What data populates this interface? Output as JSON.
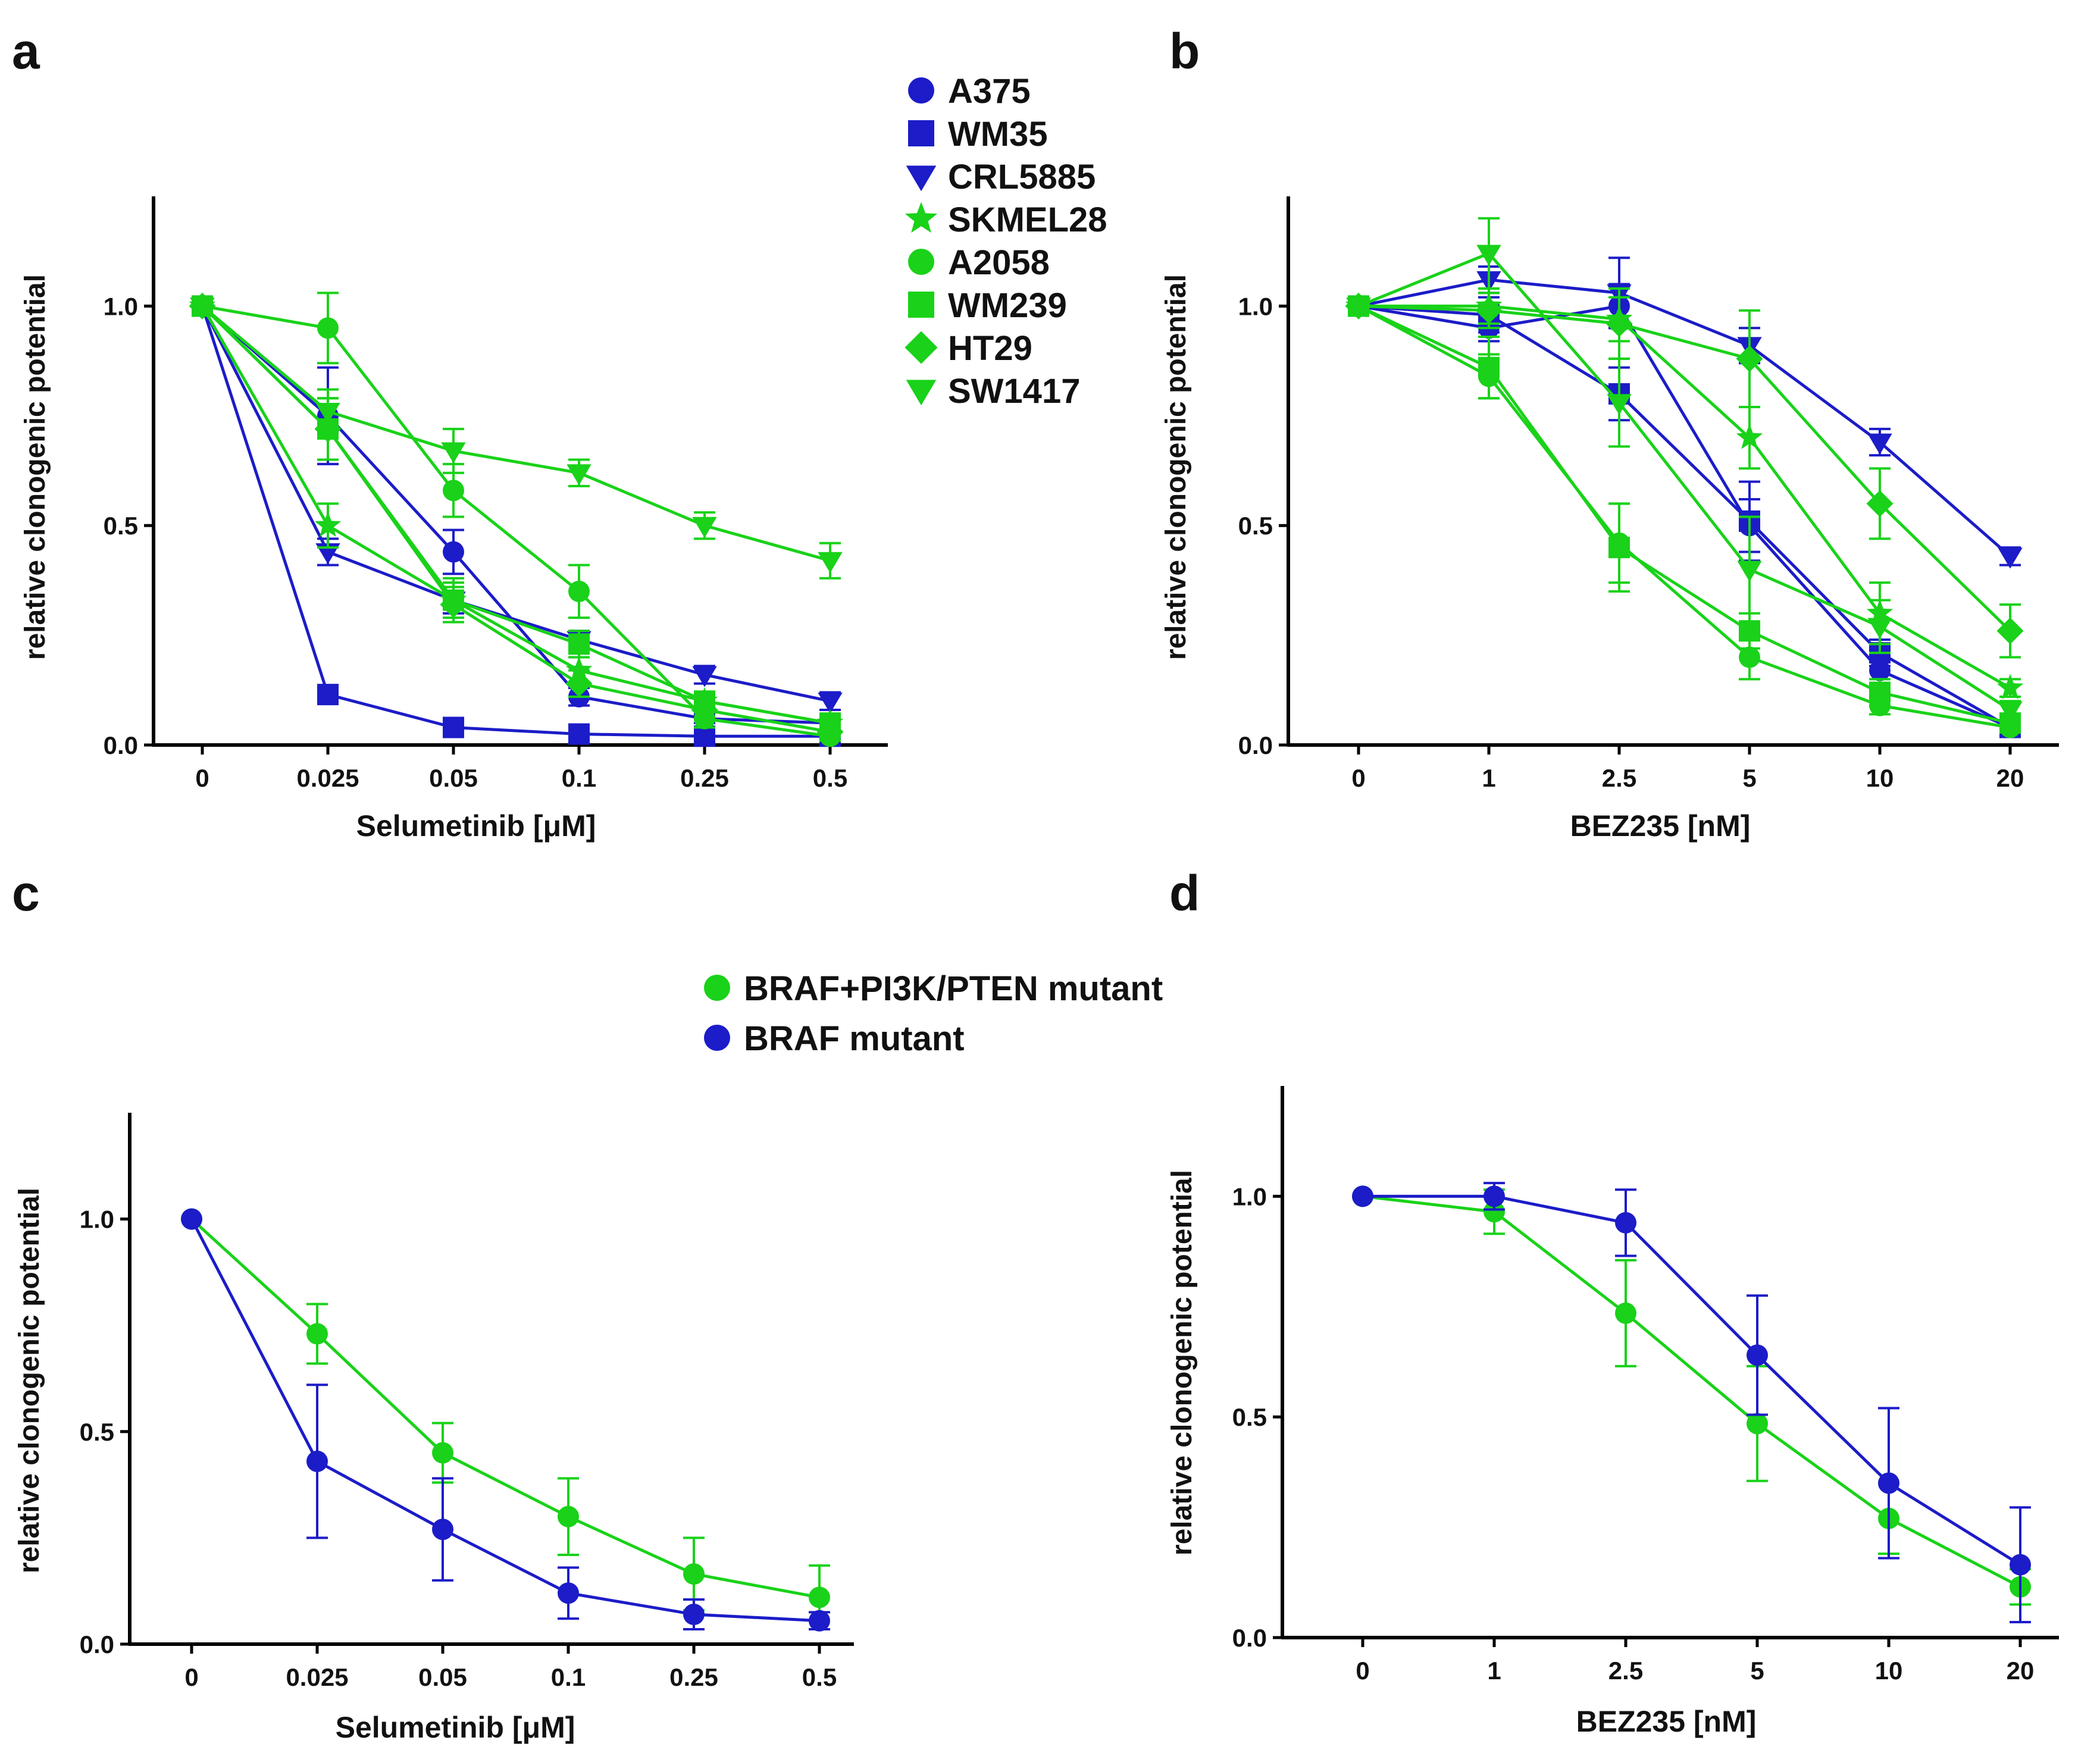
{
  "colors": {
    "blue": "#1c1cc8",
    "green": "#19d219",
    "axis": "#000000"
  },
  "legend_top": [
    {
      "label": "A375",
      "marker": "circle",
      "color": "blue"
    },
    {
      "label": "WM35",
      "marker": "square",
      "color": "blue"
    },
    {
      "label": "CRL5885",
      "marker": "triangle",
      "color": "blue"
    },
    {
      "label": "SKMEL28",
      "marker": "star",
      "color": "green"
    },
    {
      "label": "A2058",
      "marker": "circle",
      "color": "green"
    },
    {
      "label": "WM239",
      "marker": "square",
      "color": "green"
    },
    {
      "label": "HT29",
      "marker": "diamond",
      "color": "green"
    },
    {
      "label": "SW1417",
      "marker": "triangle",
      "color": "green"
    }
  ],
  "legend_bottom": [
    {
      "label": "BRAF+PI3K/PTEN mutant",
      "marker": "circle",
      "color": "green"
    },
    {
      "label": "BRAF mutant",
      "marker": "circle",
      "color": "blue"
    }
  ],
  "chart_data": [
    {
      "panel": "a",
      "type": "line",
      "xlabel": "Selumetinib [μM]",
      "ylabel": "relative clonogenic potential",
      "categories": [
        "0",
        "0.025",
        "0.05",
        "0.1",
        "0.25",
        "0.5"
      ],
      "ylim": [
        0,
        1.25
      ],
      "yticks": [
        "0.0",
        "0.5",
        "1.0"
      ],
      "series": [
        {
          "name": "A375",
          "marker": "circle",
          "color": "blue",
          "values": [
            1.0,
            0.75,
            0.44,
            0.11,
            0.06,
            0.05
          ],
          "err": [
            0,
            0.11,
            0.05,
            0.02,
            0.01,
            0.01
          ]
        },
        {
          "name": "WM35",
          "marker": "square",
          "color": "blue",
          "values": [
            1.0,
            0.115,
            0.04,
            0.025,
            0.02,
            0.02
          ],
          "err": [
            0,
            0.02,
            0.01,
            0.01,
            0.005,
            0.005
          ]
        },
        {
          "name": "CRL5885",
          "marker": "triangle",
          "color": "blue",
          "values": [
            1.0,
            0.44,
            0.33,
            0.24,
            0.16,
            0.1
          ],
          "err": [
            0,
            0.03,
            0.03,
            0.02,
            0.02,
            0.02
          ]
        },
        {
          "name": "SKMEL28",
          "marker": "star",
          "color": "green",
          "values": [
            1.0,
            0.5,
            0.33,
            0.17,
            0.1,
            0.05
          ],
          "err": [
            0,
            0.05,
            0.04,
            0.03,
            0.02,
            0.01
          ]
        },
        {
          "name": "A2058",
          "marker": "circle",
          "color": "green",
          "values": [
            1.0,
            0.95,
            0.58,
            0.35,
            0.06,
            0.02
          ],
          "err": [
            0,
            0.08,
            0.06,
            0.06,
            0.02,
            0.01
          ]
        },
        {
          "name": "WM239",
          "marker": "square",
          "color": "green",
          "values": [
            1.0,
            0.72,
            0.33,
            0.23,
            0.1,
            0.05
          ],
          "err": [
            0,
            0.07,
            0.05,
            0.03,
            0.02,
            0.01
          ]
        },
        {
          "name": "HT29",
          "marker": "diamond",
          "color": "green",
          "values": [
            1.0,
            0.72,
            0.32,
            0.14,
            0.08,
            0.03
          ],
          "err": [
            0,
            0.07,
            0.04,
            0.03,
            0.02,
            0.01
          ]
        },
        {
          "name": "SW1417",
          "marker": "triangle",
          "color": "green",
          "values": [
            1.0,
            0.76,
            0.67,
            0.62,
            0.5,
            0.42
          ],
          "err": [
            0,
            0.05,
            0.05,
            0.03,
            0.03,
            0.04
          ]
        }
      ]
    },
    {
      "panel": "b",
      "type": "line",
      "xlabel": "BEZ235 [nM]",
      "ylabel": "relative clonogenic potential",
      "categories": [
        "0",
        "1",
        "2.5",
        "5",
        "10",
        "20"
      ],
      "ylim": [
        0,
        1.25
      ],
      "yticks": [
        "0.0",
        "0.5",
        "1.0"
      ],
      "series": [
        {
          "name": "A375",
          "marker": "circle",
          "color": "blue",
          "values": [
            1.0,
            0.95,
            1.0,
            0.5,
            0.17,
            0.04
          ],
          "err": [
            0,
            0.03,
            0.05,
            0.06,
            0.03,
            0.01
          ]
        },
        {
          "name": "WM35",
          "marker": "square",
          "color": "blue",
          "values": [
            1.0,
            0.98,
            0.8,
            0.51,
            0.21,
            0.04
          ],
          "err": [
            0,
            0.04,
            0.06,
            0.09,
            0.03,
            0.01
          ]
        },
        {
          "name": "CRL5885",
          "marker": "triangle",
          "color": "blue",
          "values": [
            1.0,
            1.06,
            1.03,
            0.91,
            0.69,
            0.43
          ],
          "err": [
            0,
            0.03,
            0.08,
            0.04,
            0.03,
            0.02
          ]
        },
        {
          "name": "SKMEL28",
          "marker": "star",
          "color": "green",
          "values": [
            1.0,
            1.0,
            0.97,
            0.7,
            0.3,
            0.13
          ],
          "err": [
            0,
            0.04,
            0.05,
            0.07,
            0.07,
            0.02
          ]
        },
        {
          "name": "A2058",
          "marker": "circle",
          "color": "green",
          "values": [
            1.0,
            0.84,
            0.46,
            0.2,
            0.09,
            0.04
          ],
          "err": [
            0,
            0.05,
            0.09,
            0.05,
            0.02,
            0.01
          ]
        },
        {
          "name": "WM239",
          "marker": "square",
          "color": "green",
          "values": [
            1.0,
            0.86,
            0.45,
            0.26,
            0.12,
            0.05
          ],
          "err": [
            0,
            0.07,
            0.1,
            0.04,
            0.03,
            0.01
          ]
        },
        {
          "name": "HT29",
          "marker": "diamond",
          "color": "green",
          "values": [
            1.0,
            0.99,
            0.96,
            0.88,
            0.55,
            0.26
          ],
          "err": [
            0,
            0.04,
            0.08,
            0.11,
            0.08,
            0.06
          ]
        },
        {
          "name": "SW1417",
          "marker": "triangle",
          "color": "green",
          "values": [
            1.0,
            1.12,
            0.78,
            0.4,
            0.27,
            0.08
          ],
          "err": [
            0,
            0.08,
            0.1,
            0.12,
            0.06,
            0.02
          ]
        }
      ]
    },
    {
      "panel": "c",
      "type": "line",
      "xlabel": "Selumetinib [μM]",
      "ylabel": "relative clonogenic potential",
      "categories": [
        "0",
        "0.025",
        "0.05",
        "0.1",
        "0.25",
        "0.5"
      ],
      "ylim": [
        0,
        1.25
      ],
      "yticks": [
        "0.0",
        "0.5",
        "1.0"
      ],
      "series": [
        {
          "name": "BRAF+PI3K/PTEN mutant",
          "marker": "circle",
          "color": "green",
          "values": [
            1.0,
            0.73,
            0.45,
            0.3,
            0.165,
            0.11
          ],
          "err": [
            0,
            0.07,
            0.07,
            0.09,
            0.085,
            0.075
          ]
        },
        {
          "name": "BRAF mutant",
          "marker": "circle",
          "color": "blue",
          "values": [
            1.0,
            0.43,
            0.27,
            0.12,
            0.07,
            0.055
          ],
          "err": [
            0,
            0.18,
            0.12,
            0.06,
            0.035,
            0.02
          ]
        }
      ]
    },
    {
      "panel": "d",
      "type": "line",
      "xlabel": "BEZ235 [nM]",
      "ylabel": "relative clonogenic potential",
      "categories": [
        "0",
        "1",
        "2.5",
        "5",
        "10",
        "20"
      ],
      "ylim": [
        0,
        1.25
      ],
      "yticks": [
        "0.0",
        "0.5",
        "1.0"
      ],
      "series": [
        {
          "name": "BRAF+PI3K/PTEN mutant",
          "marker": "circle",
          "color": "green",
          "values": [
            1.0,
            0.965,
            0.735,
            0.485,
            0.27,
            0.115
          ],
          "err": [
            0,
            0.05,
            0.12,
            0.13,
            0.08,
            0.04
          ]
        },
        {
          "name": "BRAF mutant",
          "marker": "circle",
          "color": "blue",
          "values": [
            1.0,
            1.0,
            0.94,
            0.64,
            0.35,
            0.165
          ],
          "err": [
            0,
            0.03,
            0.075,
            0.135,
            0.17,
            0.13
          ]
        }
      ]
    }
  ]
}
